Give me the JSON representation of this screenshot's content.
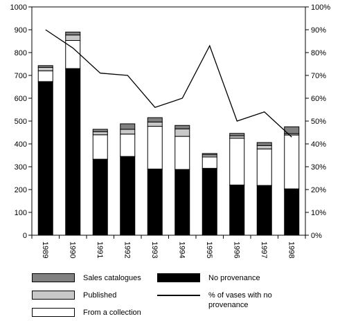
{
  "chart_data": {
    "type": "bar",
    "stacked": true,
    "categories": [
      "1989",
      "1990",
      "1991",
      "1992",
      "1993",
      "1994",
      "1995",
      "1996",
      "1997",
      "1998"
    ],
    "series": [
      {
        "name": "No provenance",
        "color": "#000000",
        "values": [
          673,
          730,
          333,
          345,
          290,
          288,
          293,
          220,
          218,
          203
        ]
      },
      {
        "name": "From a collection",
        "color": "#ffffff",
        "values": [
          47,
          123,
          107,
          98,
          187,
          145,
          50,
          205,
          160,
          236
        ]
      },
      {
        "name": "Published",
        "color": "#c8c8c8",
        "values": [
          15,
          24,
          13,
          21,
          19,
          33,
          9,
          10,
          15,
          6
        ]
      },
      {
        "name": "Sales catalogues",
        "color": "#808080",
        "values": [
          8,
          13,
          11,
          24,
          19,
          15,
          6,
          11,
          13,
          30
        ]
      }
    ],
    "line_series": {
      "name": "% of vases with no provenance",
      "axis": "right",
      "values": [
        90,
        82,
        71,
        70,
        56,
        60,
        83,
        50,
        54,
        43
      ]
    },
    "ylim": [
      0,
      1000
    ],
    "y_ticks": [
      0,
      100,
      200,
      300,
      400,
      500,
      600,
      700,
      800,
      900,
      1000
    ],
    "y2lim": [
      0,
      100
    ],
    "y2_ticks": [
      "0%",
      "10%",
      "20%",
      "30%",
      "40%",
      "50%",
      "60%",
      "70%",
      "80%",
      "90%",
      "100%"
    ],
    "title": "",
    "xlabel": "",
    "ylabel": "",
    "grid": false,
    "legend_position": "bottom"
  },
  "legend": {
    "sales_catalogues": "Sales catalogues",
    "published": "Published",
    "from_a_collection": "From a collection",
    "no_provenance": "No provenance",
    "pct_line_1": "% of vases with no",
    "pct_line_2": "provenance"
  }
}
